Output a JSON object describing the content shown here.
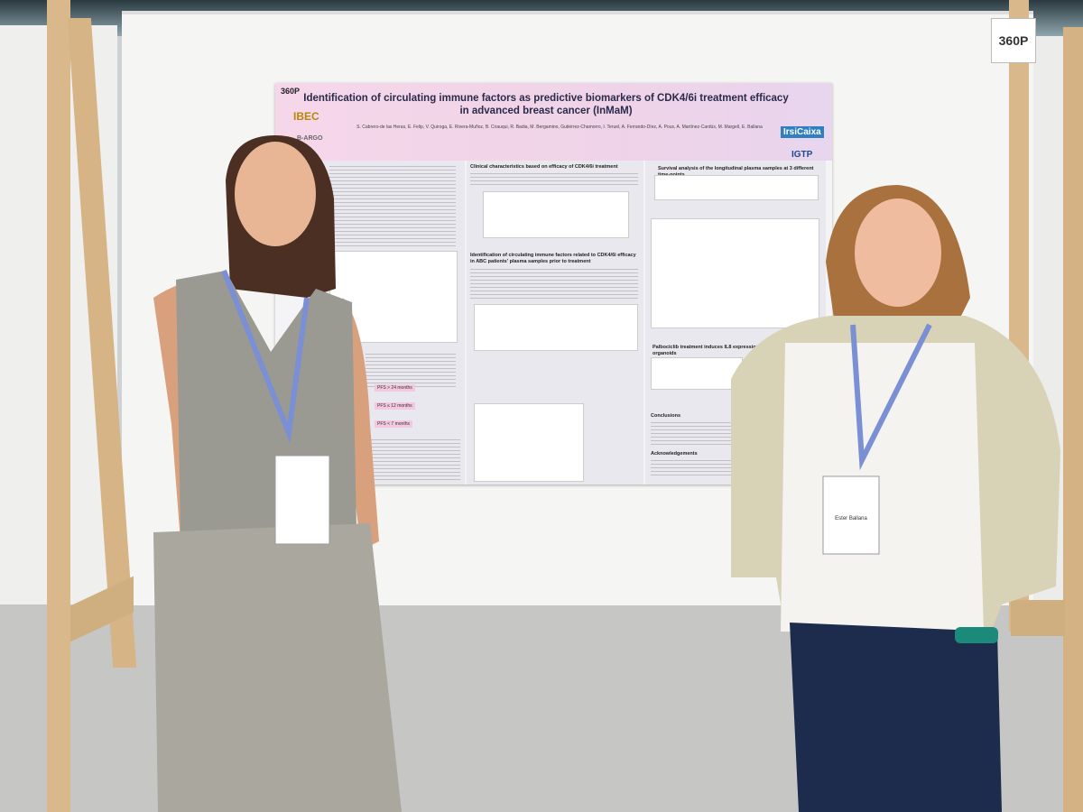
{
  "board_number": "360P",
  "poster": {
    "number": "360P",
    "title": "Identification of circulating immune factors as predictive biomarkers of CDK4/6i treatment efficacy in advanced breast cancer (InMaM)",
    "authors": "S. Cabrero-de las Heras, E. Felip, V. Quiroga, E. Rivera-Muñoz, B. Cirauqui, R. Badia, M. Bergamino, Gutiérrez-Chamorro, I. Teruel, A. Ferrando-Díez, A. Pous, A. Martínez-Cardús, M. Margelí, E. Ballana",
    "logos": [
      "IBEC",
      "B-ARGO",
      "IrsiCaixa",
      "IGTP"
    ],
    "sections": [
      "Clinical characteristics based on efficacy of CDK4/6i treatment",
      "Identification of circulating immune factors related to CDK4/6i efficacy in ABC patients' plasma samples prior to treatment",
      "Survival analysis of the longitudinal plasma samples at 3 different time-points",
      "Palbociclib treatment induces IL8 expression in spheroids organoids",
      "Conclusions",
      "Acknowledgements"
    ],
    "groups": [
      "PFS > 24 months",
      "PFS ≤ 12 months",
      "PFS < 7 months"
    ]
  },
  "badges": [
    "Ester Ballana"
  ]
}
